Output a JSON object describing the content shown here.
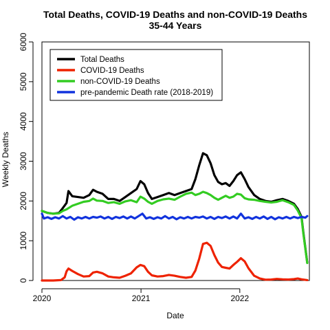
{
  "chart_data": {
    "type": "line",
    "title": "Total Deaths, COVID-19 Deaths and non-COVID-19 Deaths",
    "subtitle": "35-44 Years",
    "xlabel": "Date",
    "ylabel": "Weekly Deaths",
    "xlim": [
      "2020-01-01",
      "2022-09-15"
    ],
    "ylim": [
      0,
      6000
    ],
    "yticks": [
      0,
      1000,
      2000,
      3000,
      4000,
      5000,
      6000
    ],
    "xticks": [
      {
        "label": "2020",
        "date": "2020-01-01"
      },
      {
        "label": "2021",
        "date": "2021-01-01"
      },
      {
        "label": "2022",
        "date": "2022-01-01"
      }
    ],
    "legend_position": "top-left",
    "grid": false,
    "series": [
      {
        "name": "Total Deaths",
        "color": "#000000",
        "points": [
          [
            "2020-01-01",
            1750
          ],
          [
            "2020-01-22",
            1700
          ],
          [
            "2020-02-12",
            1680
          ],
          [
            "2020-03-04",
            1700
          ],
          [
            "2020-03-18",
            1820
          ],
          [
            "2020-04-01",
            1950
          ],
          [
            "2020-04-08",
            2250
          ],
          [
            "2020-04-22",
            2120
          ],
          [
            "2020-05-13",
            2100
          ],
          [
            "2020-06-03",
            2080
          ],
          [
            "2020-06-24",
            2150
          ],
          [
            "2020-07-08",
            2280
          ],
          [
            "2020-07-22",
            2230
          ],
          [
            "2020-08-12",
            2180
          ],
          [
            "2020-09-02",
            2050
          ],
          [
            "2020-09-23",
            2050
          ],
          [
            "2020-10-14",
            2000
          ],
          [
            "2020-11-04",
            2100
          ],
          [
            "2020-11-25",
            2200
          ],
          [
            "2020-12-16",
            2300
          ],
          [
            "2020-12-30",
            2500
          ],
          [
            "2021-01-13",
            2420
          ],
          [
            "2021-01-27",
            2200
          ],
          [
            "2021-02-10",
            2050
          ],
          [
            "2021-03-03",
            2100
          ],
          [
            "2021-03-24",
            2150
          ],
          [
            "2021-04-14",
            2200
          ],
          [
            "2021-05-05",
            2150
          ],
          [
            "2021-05-26",
            2200
          ],
          [
            "2021-06-16",
            2250
          ],
          [
            "2021-07-07",
            2300
          ],
          [
            "2021-07-21",
            2550
          ],
          [
            "2021-08-04",
            2900
          ],
          [
            "2021-08-18",
            3200
          ],
          [
            "2021-09-01",
            3150
          ],
          [
            "2021-09-15",
            2950
          ],
          [
            "2021-09-29",
            2650
          ],
          [
            "2021-10-13",
            2480
          ],
          [
            "2021-10-27",
            2420
          ],
          [
            "2021-11-10",
            2450
          ],
          [
            "2021-11-24",
            2380
          ],
          [
            "2021-12-08",
            2500
          ],
          [
            "2021-12-22",
            2650
          ],
          [
            "2022-01-05",
            2720
          ],
          [
            "2022-01-19",
            2550
          ],
          [
            "2022-02-02",
            2350
          ],
          [
            "2022-02-23",
            2150
          ],
          [
            "2022-03-16",
            2050
          ],
          [
            "2022-04-06",
            2000
          ],
          [
            "2022-04-27",
            1980
          ],
          [
            "2022-05-18",
            2020
          ],
          [
            "2022-06-08",
            2050
          ],
          [
            "2022-06-29",
            2000
          ],
          [
            "2022-07-20",
            1930
          ],
          [
            "2022-08-03",
            1800
          ],
          [
            "2022-08-17",
            1600
          ],
          [
            "2022-08-24",
            1200
          ],
          [
            "2022-09-07",
            450
          ]
        ]
      },
      {
        "name": "COVID-19 Deaths",
        "color": "#ee2200",
        "points": [
          [
            "2020-01-01",
            0
          ],
          [
            "2020-02-12",
            0
          ],
          [
            "2020-03-11",
            10
          ],
          [
            "2020-03-25",
            80
          ],
          [
            "2020-04-01",
            230
          ],
          [
            "2020-04-08",
            300
          ],
          [
            "2020-04-22",
            240
          ],
          [
            "2020-05-13",
            160
          ],
          [
            "2020-06-03",
            100
          ],
          [
            "2020-06-24",
            110
          ],
          [
            "2020-07-08",
            200
          ],
          [
            "2020-07-22",
            220
          ],
          [
            "2020-08-12",
            180
          ],
          [
            "2020-09-02",
            100
          ],
          [
            "2020-09-23",
            80
          ],
          [
            "2020-10-14",
            70
          ],
          [
            "2020-11-04",
            120
          ],
          [
            "2020-11-25",
            180
          ],
          [
            "2020-12-16",
            330
          ],
          [
            "2020-12-30",
            390
          ],
          [
            "2021-01-13",
            360
          ],
          [
            "2021-01-27",
            220
          ],
          [
            "2021-02-10",
            130
          ],
          [
            "2021-03-03",
            100
          ],
          [
            "2021-03-24",
            110
          ],
          [
            "2021-04-14",
            140
          ],
          [
            "2021-05-05",
            120
          ],
          [
            "2021-05-26",
            90
          ],
          [
            "2021-06-16",
            70
          ],
          [
            "2021-07-07",
            90
          ],
          [
            "2021-07-21",
            250
          ],
          [
            "2021-08-04",
            550
          ],
          [
            "2021-08-18",
            920
          ],
          [
            "2021-09-01",
            950
          ],
          [
            "2021-09-15",
            870
          ],
          [
            "2021-09-29",
            640
          ],
          [
            "2021-10-13",
            450
          ],
          [
            "2021-10-27",
            340
          ],
          [
            "2021-11-10",
            320
          ],
          [
            "2021-11-24",
            300
          ],
          [
            "2021-12-08",
            390
          ],
          [
            "2021-12-22",
            470
          ],
          [
            "2022-01-05",
            560
          ],
          [
            "2022-01-19",
            480
          ],
          [
            "2022-02-02",
            310
          ],
          [
            "2022-02-23",
            120
          ],
          [
            "2022-03-16",
            50
          ],
          [
            "2022-04-06",
            20
          ],
          [
            "2022-04-27",
            25
          ],
          [
            "2022-05-18",
            40
          ],
          [
            "2022-06-08",
            30
          ],
          [
            "2022-06-29",
            25
          ],
          [
            "2022-07-20",
            35
          ],
          [
            "2022-08-03",
            50
          ],
          [
            "2022-08-17",
            30
          ],
          [
            "2022-09-07",
            10
          ]
        ]
      },
      {
        "name": "non-COVID-19 Deaths",
        "color": "#33cc22",
        "points": [
          [
            "2020-01-01",
            1750
          ],
          [
            "2020-01-22",
            1700
          ],
          [
            "2020-02-12",
            1680
          ],
          [
            "2020-03-04",
            1690
          ],
          [
            "2020-03-18",
            1750
          ],
          [
            "2020-04-01",
            1790
          ],
          [
            "2020-04-22",
            1880
          ],
          [
            "2020-05-13",
            1930
          ],
          [
            "2020-06-03",
            1980
          ],
          [
            "2020-06-24",
            2000
          ],
          [
            "2020-07-08",
            2060
          ],
          [
            "2020-07-22",
            2010
          ],
          [
            "2020-08-12",
            2000
          ],
          [
            "2020-09-02",
            1950
          ],
          [
            "2020-09-23",
            1970
          ],
          [
            "2020-10-14",
            1930
          ],
          [
            "2020-11-04",
            1990
          ],
          [
            "2020-11-25",
            2020
          ],
          [
            "2020-12-16",
            1970
          ],
          [
            "2020-12-30",
            2110
          ],
          [
            "2021-01-13",
            2060
          ],
          [
            "2021-01-27",
            1980
          ],
          [
            "2021-02-10",
            1930
          ],
          [
            "2021-03-03",
            2000
          ],
          [
            "2021-03-24",
            2040
          ],
          [
            "2021-04-14",
            2060
          ],
          [
            "2021-05-05",
            2030
          ],
          [
            "2021-05-26",
            2110
          ],
          [
            "2021-06-16",
            2180
          ],
          [
            "2021-07-07",
            2210
          ],
          [
            "2021-07-21",
            2150
          ],
          [
            "2021-08-04",
            2180
          ],
          [
            "2021-08-18",
            2230
          ],
          [
            "2021-09-01",
            2200
          ],
          [
            "2021-09-15",
            2150
          ],
          [
            "2021-09-29",
            2080
          ],
          [
            "2021-10-13",
            2030
          ],
          [
            "2021-10-27",
            2080
          ],
          [
            "2021-11-10",
            2130
          ],
          [
            "2021-11-24",
            2080
          ],
          [
            "2021-12-08",
            2110
          ],
          [
            "2021-12-22",
            2180
          ],
          [
            "2022-01-05",
            2160
          ],
          [
            "2022-01-19",
            2070
          ],
          [
            "2022-02-02",
            2040
          ],
          [
            "2022-02-23",
            2030
          ],
          [
            "2022-03-16",
            2000
          ],
          [
            "2022-04-06",
            1980
          ],
          [
            "2022-04-27",
            1960
          ],
          [
            "2022-05-18",
            1980
          ],
          [
            "2022-06-08",
            2020
          ],
          [
            "2022-06-29",
            1970
          ],
          [
            "2022-07-20",
            1900
          ],
          [
            "2022-08-03",
            1760
          ],
          [
            "2022-08-17",
            1570
          ],
          [
            "2022-08-24",
            1170
          ],
          [
            "2022-09-07",
            440
          ]
        ]
      },
      {
        "name": "pre-pandemic Death rate (2018-2019)",
        "color": "#1133dd",
        "points": [
          [
            "2020-01-01",
            1680
          ],
          [
            "2020-01-08",
            1560
          ],
          [
            "2020-01-22",
            1590
          ],
          [
            "2020-02-05",
            1550
          ],
          [
            "2020-02-19",
            1590
          ],
          [
            "2020-03-04",
            1560
          ],
          [
            "2020-03-18",
            1620
          ],
          [
            "2020-04-01",
            1560
          ],
          [
            "2020-04-15",
            1600
          ],
          [
            "2020-04-29",
            1530
          ],
          [
            "2020-05-13",
            1590
          ],
          [
            "2020-05-27",
            1560
          ],
          [
            "2020-06-10",
            1600
          ],
          [
            "2020-06-24",
            1560
          ],
          [
            "2020-07-08",
            1600
          ],
          [
            "2020-07-22",
            1580
          ],
          [
            "2020-08-05",
            1610
          ],
          [
            "2020-08-19",
            1560
          ],
          [
            "2020-09-02",
            1600
          ],
          [
            "2020-09-16",
            1550
          ],
          [
            "2020-09-30",
            1600
          ],
          [
            "2020-10-14",
            1570
          ],
          [
            "2020-10-28",
            1610
          ],
          [
            "2020-11-11",
            1560
          ],
          [
            "2020-11-25",
            1610
          ],
          [
            "2020-12-09",
            1560
          ],
          [
            "2020-12-23",
            1620
          ],
          [
            "2021-01-06",
            1680
          ],
          [
            "2021-01-20",
            1560
          ],
          [
            "2021-02-03",
            1590
          ],
          [
            "2021-02-17",
            1550
          ],
          [
            "2021-03-03",
            1590
          ],
          [
            "2021-03-17",
            1560
          ],
          [
            "2021-03-31",
            1620
          ],
          [
            "2021-04-14",
            1560
          ],
          [
            "2021-04-28",
            1600
          ],
          [
            "2021-05-12",
            1540
          ],
          [
            "2021-05-26",
            1590
          ],
          [
            "2021-06-09",
            1560
          ],
          [
            "2021-06-23",
            1600
          ],
          [
            "2021-07-07",
            1560
          ],
          [
            "2021-07-21",
            1600
          ],
          [
            "2021-08-04",
            1580
          ],
          [
            "2021-08-18",
            1610
          ],
          [
            "2021-09-01",
            1560
          ],
          [
            "2021-09-15",
            1600
          ],
          [
            "2021-09-29",
            1550
          ],
          [
            "2021-10-13",
            1600
          ],
          [
            "2021-10-27",
            1570
          ],
          [
            "2021-11-10",
            1610
          ],
          [
            "2021-11-24",
            1560
          ],
          [
            "2021-12-08",
            1610
          ],
          [
            "2021-12-22",
            1560
          ],
          [
            "2022-01-05",
            1680
          ],
          [
            "2022-01-19",
            1560
          ],
          [
            "2022-02-02",
            1590
          ],
          [
            "2022-02-16",
            1550
          ],
          [
            "2022-03-02",
            1600
          ],
          [
            "2022-03-16",
            1560
          ],
          [
            "2022-03-30",
            1610
          ],
          [
            "2022-04-13",
            1550
          ],
          [
            "2022-04-27",
            1600
          ],
          [
            "2022-05-11",
            1540
          ],
          [
            "2022-05-25",
            1590
          ],
          [
            "2022-06-08",
            1560
          ],
          [
            "2022-06-22",
            1600
          ],
          [
            "2022-07-06",
            1560
          ],
          [
            "2022-07-20",
            1600
          ],
          [
            "2022-08-03",
            1570
          ],
          [
            "2022-08-17",
            1600
          ],
          [
            "2022-08-31",
            1580
          ],
          [
            "2022-09-07",
            1620
          ]
        ]
      }
    ]
  }
}
